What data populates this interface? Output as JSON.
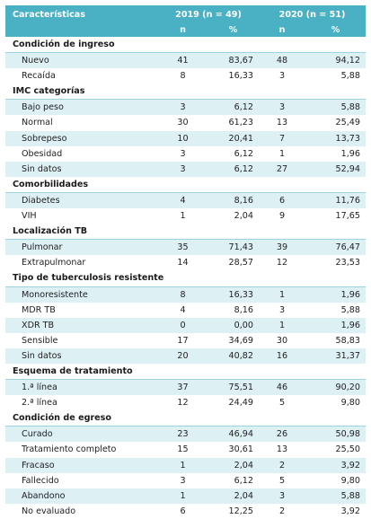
{
  "header": {
    "characteristics": "Características",
    "year2019": "2019 (n = 49)",
    "year2020": "2020 (n = 51)",
    "n": "n",
    "pct": "%"
  },
  "sections": [
    {
      "title": "Condición de ingreso",
      "rows": [
        {
          "label": "Nuevo",
          "n2019": "41",
          "p2019": "83,67",
          "n2020": "48",
          "p2020": "94,12"
        },
        {
          "label": "Recaída",
          "n2019": "8",
          "p2019": "16,33",
          "n2020": "3",
          "p2020": "5,88"
        }
      ]
    },
    {
      "title": "IMC categorías",
      "rows": [
        {
          "label": "Bajo peso",
          "n2019": "3",
          "p2019": "6,12",
          "n2020": "3",
          "p2020": "5,88"
        },
        {
          "label": "Normal",
          "n2019": "30",
          "p2019": "61,23",
          "n2020": "13",
          "p2020": "25,49"
        },
        {
          "label": "Sobrepeso",
          "n2019": "10",
          "p2019": "20,41",
          "n2020": "7",
          "p2020": "13,73"
        },
        {
          "label": "Obesidad",
          "n2019": "3",
          "p2019": "6,12",
          "n2020": "1",
          "p2020": "1,96"
        },
        {
          "label": "Sin datos",
          "n2019": "3",
          "p2019": "6,12",
          "n2020": "27",
          "p2020": "52,94"
        }
      ]
    },
    {
      "title": "Comorbilidades",
      "rows": [
        {
          "label": "Diabetes",
          "n2019": "4",
          "p2019": "8,16",
          "n2020": "6",
          "p2020": "11,76"
        },
        {
          "label": "VIH",
          "n2019": "1",
          "p2019": "2,04",
          "n2020": "9",
          "p2020": "17,65"
        }
      ]
    },
    {
      "title": "Localización TB",
      "rows": [
        {
          "label": "Pulmonar",
          "n2019": "35",
          "p2019": "71,43",
          "n2020": "39",
          "p2020": "76,47"
        },
        {
          "label": "Extrapulmonar",
          "n2019": "14",
          "p2019": "28,57",
          "n2020": "12",
          "p2020": "23,53"
        }
      ]
    },
    {
      "title": "Tipo de tuberculosis resistente",
      "rows": [
        {
          "label": "Monoresistente",
          "n2019": "8",
          "p2019": "16,33",
          "n2020": "1",
          "p2020": "1,96"
        },
        {
          "label": "MDR TB",
          "n2019": "4",
          "p2019": "8,16",
          "n2020": "3",
          "p2020": "5,88"
        },
        {
          "label": "XDR TB",
          "n2019": "0",
          "p2019": "0,00",
          "n2020": "1",
          "p2020": "1,96"
        },
        {
          "label": "Sensible",
          "n2019": "17",
          "p2019": "34,69",
          "n2020": "30",
          "p2020": "58,83"
        },
        {
          "label": "Sin datos",
          "n2019": "20",
          "p2019": "40,82",
          "n2020": "16",
          "p2020": "31,37"
        }
      ]
    },
    {
      "title": "Esquema de tratamiento",
      "rows": [
        {
          "label": "1.ª línea",
          "n2019": "37",
          "p2019": "75,51",
          "n2020": "46",
          "p2020": "90,20"
        },
        {
          "label": "2.ª línea",
          "n2019": "12",
          "p2019": "24,49",
          "n2020": "5",
          "p2020": "9,80"
        }
      ]
    },
    {
      "title": "Condición de egreso",
      "rows": [
        {
          "label": "Curado",
          "n2019": "23",
          "p2019": "46,94",
          "n2020": "26",
          "p2020": "50,98"
        },
        {
          "label": "Tratamiento completo",
          "n2019": "15",
          "p2019": "30,61",
          "n2020": "13",
          "p2020": "25,50"
        },
        {
          "label": "Fracaso",
          "n2019": "1",
          "p2019": "2,04",
          "n2020": "2",
          "p2020": "3,92"
        },
        {
          "label": "Fallecido",
          "n2019": "3",
          "p2019": "6,12",
          "n2020": "5",
          "p2020": "9,80"
        },
        {
          "label": "Abandono",
          "n2019": "1",
          "p2019": "2,04",
          "n2020": "3",
          "p2020": "5,88"
        },
        {
          "label": "No evaluado",
          "n2019": "6",
          "p2019": "12,25",
          "n2020": "2",
          "p2020": "3,92"
        }
      ]
    }
  ]
}
